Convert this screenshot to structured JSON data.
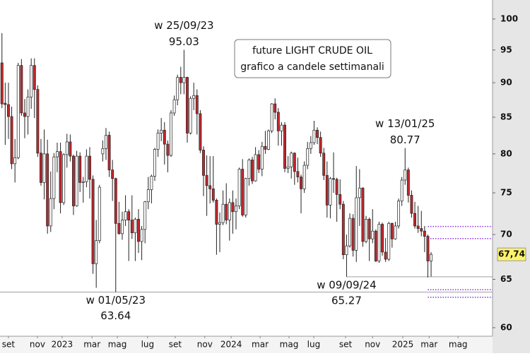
{
  "chart_data": {
    "type": "candlestick",
    "title": "future LIGHT CRUDE OIL",
    "subtitle": "grafico a candele settimanali",
    "log_y": true,
    "ylim": [
      59.16,
      103.2
    ],
    "yticks": [
      60,
      65,
      70,
      75,
      80,
      85,
      90,
      95,
      100
    ],
    "xlim": [
      -0.6,
      150.9
    ],
    "xticks": [
      {
        "value": 2.0,
        "label": "set"
      },
      {
        "value": 10.9,
        "label": "nov"
      },
      {
        "value": 18.5,
        "label": "2023"
      },
      {
        "value": 27.7,
        "label": "mar"
      },
      {
        "value": 35.5,
        "label": "mag"
      },
      {
        "value": 44.8,
        "label": "lug"
      },
      {
        "value": 53.3,
        "label": "set"
      },
      {
        "value": 62.4,
        "label": "nov"
      },
      {
        "value": 70.5,
        "label": "2024"
      },
      {
        "value": 79.4,
        "label": "mar"
      },
      {
        "value": 88.3,
        "label": "mag"
      },
      {
        "value": 95.9,
        "label": "lug"
      },
      {
        "value": 105.7,
        "label": "set"
      },
      {
        "value": 114.0,
        "label": "nov"
      },
      {
        "value": 123.3,
        "label": "2025"
      },
      {
        "value": 131.4,
        "label": "mar"
      },
      {
        "value": 140.3,
        "label": "mag"
      }
    ],
    "up_color": "#ffffff",
    "down_color": "#c0272d",
    "open": [
      93.0,
      87.0,
      86.8,
      85.1,
      78.7,
      79.5,
      92.6,
      85.6,
      85.1,
      87.9,
      92.6,
      89.0,
      80.1,
      76.3,
      80.0,
      71.0,
      74.3,
      79.6,
      80.3,
      73.8,
      79.9,
      81.6,
      79.7,
      73.4,
      79.7,
      76.3,
      76.4,
      79.7,
      76.7,
      66.7,
      69.3,
      80.0,
      80.7,
      82.5,
      77.9,
      76.8,
      71.3,
      70.1,
      71.7,
      72.7,
      71.7,
      70.2,
      71.8,
      69.2,
      70.6,
      73.9,
      75.4,
      77.1,
      80.6,
      82.8,
      83.2,
      81.3,
      79.8,
      85.6,
      87.5,
      90.8,
      90.0,
      90.8,
      82.8,
      87.7,
      88.1,
      85.5,
      80.5,
      77.2,
      75.9,
      75.5,
      74.1,
      71.2,
      71.4,
      73.6,
      71.7,
      73.8,
      72.7,
      73.4,
      78.0,
      72.3,
      76.8,
      79.2,
      76.5,
      79.9,
      78.0,
      81.0,
      80.6,
      83.1,
      86.9,
      85.7,
      83.1,
      83.9,
      78.1,
      78.3,
      80.1,
      77.7,
      77.0,
      75.5,
      78.5,
      80.7,
      81.5,
      83.2,
      82.2,
      80.1,
      77.2,
      73.5,
      76.8,
      76.7,
      74.8,
      73.6,
      67.7,
      68.7,
      71.9,
      68.2,
      74.4,
      75.6,
      69.2,
      71.8,
      69.5,
      70.4,
      67.0,
      71.2,
      68.0,
      67.2,
      71.3,
      69.5,
      71.0,
      74.0,
      76.6,
      77.9,
      74.7,
      72.5,
      71.0,
      70.7,
      70.4,
      69.8,
      67.0
    ],
    "high": [
      97.7,
      90.0,
      90.0,
      86.5,
      82.0,
      93.0,
      93.6,
      87.6,
      89.0,
      93.7,
      93.7,
      89.6,
      82.0,
      83.3,
      81.9,
      77.7,
      80.1,
      81.5,
      81.5,
      80.1,
      82.7,
      82.6,
      79.9,
      80.4,
      80.2,
      77.0,
      80.6,
      80.9,
      77.2,
      71.7,
      76.0,
      81.8,
      83.5,
      83.0,
      79.2,
      76.9,
      73.9,
      72.7,
      74.7,
      73.0,
      74.7,
      72.0,
      73.0,
      71.0,
      74.0,
      77.0,
      77.3,
      80.8,
      83.3,
      84.9,
      84.3,
      81.8,
      86.0,
      88.1,
      91.2,
      92.4,
      95.03,
      90.9,
      88.0,
      90.0,
      89.0,
      86.0,
      81.0,
      79.8,
      79.7,
      79.7,
      74.3,
      72.6,
      75.3,
      76.2,
      74.3,
      75.3,
      74.3,
      78.2,
      79.3,
      76.9,
      79.4,
      79.6,
      80.9,
      80.5,
      81.6,
      83.1,
      83.3,
      87.0,
      87.7,
      86.3,
      84.3,
      84.3,
      79.7,
      80.3,
      80.2,
      79.5,
      77.3,
      79.0,
      81.6,
      82.4,
      84.5,
      83.6,
      83.0,
      80.8,
      79.0,
      77.0,
      80.2,
      76.9,
      76.7,
      74.0,
      70.0,
      72.5,
      72.4,
      78.4,
      78.0,
      75.7,
      72.2,
      72.0,
      73.0,
      70.6,
      71.5,
      71.4,
      69.6,
      71.5,
      71.4,
      71.5,
      74.3,
      77.0,
      80.77,
      78.2,
      75.3,
      73.9,
      73.4,
      72.8,
      71.0,
      70.0,
      68.0
    ],
    "low": [
      86.3,
      81.2,
      82.0,
      78.0,
      76.3,
      79.3,
      85.2,
      82.1,
      82.6,
      86.2,
      84.9,
      79.6,
      75.9,
      74.2,
      70.1,
      70.3,
      73.0,
      77.6,
      72.5,
      73.5,
      78.2,
      79.0,
      72.3,
      73.3,
      75.1,
      73.8,
      75.7,
      74.3,
      65.6,
      64.1,
      69.0,
      79.0,
      79.2,
      77.0,
      74.0,
      63.64,
      70.0,
      69.4,
      71.0,
      67.0,
      69.5,
      67.0,
      67.9,
      67.1,
      69.0,
      73.0,
      73.7,
      76.5,
      79.6,
      81.7,
      78.6,
      77.6,
      79.6,
      85.2,
      86.7,
      88.3,
      88.3,
      81.5,
      82.6,
      86.0,
      82.6,
      80.1,
      74.6,
      72.2,
      73.7,
      73.8,
      67.7,
      68.0,
      71.1,
      71.2,
      69.3,
      70.1,
      70.6,
      73.0,
      72.1,
      72.0,
      75.9,
      76.1,
      76.4,
      77.5,
      77.1,
      80.0,
      80.5,
      82.8,
      84.7,
      81.1,
      81.1,
      77.6,
      77.5,
      76.8,
      76.0,
      76.3,
      72.5,
      75.0,
      78.0,
      80.0,
      81.2,
      81.3,
      79.6,
      76.6,
      72.0,
      71.9,
      75.0,
      71.5,
      73.0,
      67.2,
      65.27,
      68.5,
      67.5,
      66.9,
      71.0,
      68.6,
      69.0,
      67.0,
      69.0,
      66.9,
      66.8,
      67.6,
      66.9,
      67.0,
      68.5,
      69.4,
      70.7,
      73.4,
      76.0,
      73.8,
      72.0,
      70.7,
      70.2,
      69.8,
      68.0,
      65.2,
      65.3
    ],
    "close": [
      86.9,
      86.8,
      85.1,
      78.7,
      79.5,
      92.6,
      85.6,
      85.1,
      87.9,
      92.6,
      89.0,
      80.1,
      76.3,
      80.0,
      71.0,
      74.3,
      79.6,
      80.3,
      73.8,
      79.9,
      81.6,
      79.7,
      73.4,
      79.7,
      76.3,
      76.4,
      79.7,
      76.7,
      66.7,
      69.3,
      75.7,
      80.7,
      82.5,
      77.9,
      76.8,
      71.3,
      70.1,
      71.7,
      72.7,
      71.7,
      70.2,
      71.8,
      69.2,
      70.6,
      73.9,
      75.4,
      77.1,
      80.6,
      82.8,
      83.2,
      81.3,
      79.8,
      85.6,
      87.5,
      90.8,
      90.0,
      90.8,
      82.8,
      87.7,
      88.1,
      85.5,
      80.5,
      77.2,
      75.9,
      75.5,
      74.1,
      71.2,
      71.4,
      73.6,
      71.7,
      73.8,
      72.7,
      73.4,
      78.0,
      72.3,
      76.8,
      79.2,
      76.5,
      79.9,
      78.0,
      81.0,
      80.6,
      83.1,
      86.9,
      85.7,
      83.1,
      83.9,
      78.1,
      78.3,
      80.1,
      77.7,
      77.0,
      75.5,
      78.5,
      80.7,
      81.5,
      83.2,
      82.2,
      80.1,
      77.2,
      73.5,
      76.8,
      76.7,
      74.8,
      73.6,
      67.7,
      68.7,
      71.9,
      68.2,
      74.4,
      75.6,
      69.2,
      71.8,
      69.5,
      70.4,
      67.0,
      71.2,
      68.0,
      67.2,
      71.3,
      69.5,
      71.0,
      74.0,
      76.6,
      77.9,
      74.7,
      72.5,
      71.0,
      70.7,
      70.4,
      69.8,
      67.0,
      67.74
    ],
    "last_price": {
      "value": 67.74,
      "label": "67,74"
    },
    "annotations": [
      {
        "date": "w 25/09/23",
        "value": 95.03,
        "x": 56,
        "position": "above"
      },
      {
        "date": "w 01/05/23",
        "value": 63.64,
        "x": 35,
        "position": "below"
      },
      {
        "date": "w 09/09/24",
        "value": 65.27,
        "x": 106,
        "position": "below"
      },
      {
        "date": "w 13/01/25",
        "value": 80.77,
        "x": 124,
        "position": "above"
      }
    ],
    "levels": [
      {
        "value": 63.64,
        "from": -0.6,
        "color": "#a0a0a0",
        "style": "solid"
      },
      {
        "value": 65.27,
        "from": 106,
        "color": "#a0a0a0",
        "style": "solid"
      },
      {
        "value": 70.94,
        "from": 131,
        "color": "#8a2be2",
        "style": "dotted"
      },
      {
        "value": 69.54,
        "from": 131,
        "color": "#8a2be2",
        "style": "dotted"
      },
      {
        "value": 63.9,
        "from": 131,
        "color": "#8a2be2",
        "style": "dotted"
      },
      {
        "value": 63.1,
        "from": 131,
        "color": "#8a2be2",
        "style": "dotted"
      }
    ]
  }
}
